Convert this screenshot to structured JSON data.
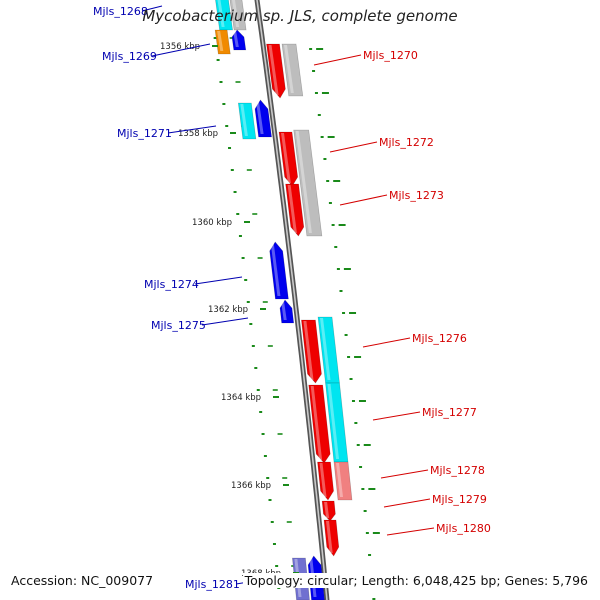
{
  "title": "Mycobacterium sp. JLS, complete genome",
  "footer": {
    "accession": "Accession: NC_009077",
    "summary": "Topology: circular; Length: 6,048,425 bp; Genes: 5,796"
  },
  "colors": {
    "forward_label": "#d40000",
    "reverse_label": "#0000b0",
    "backbone": "#7a7a7a",
    "tick": "#1a8a1a",
    "red": "#ee0000",
    "blue": "#0000ee",
    "cyan": "#00e5f0",
    "grey": "#bdbdbd",
    "orange": "#f08a00",
    "pink": "#f08080",
    "lavender": "#7070d0"
  },
  "kbp_labels": [
    "1356 kbp",
    "1358 kbp",
    "1360 kbp",
    "1362 kbp",
    "1364 kbp",
    "1366 kbp",
    "1368 kbp"
  ],
  "genes": [
    {
      "name": "Mjls_1268",
      "strand": "reverse"
    },
    {
      "name": "Mjls_1269",
      "strand": "reverse"
    },
    {
      "name": "Mjls_1270",
      "strand": "forward"
    },
    {
      "name": "Mjls_1271",
      "strand": "reverse"
    },
    {
      "name": "Mjls_1272",
      "strand": "forward"
    },
    {
      "name": "Mjls_1273",
      "strand": "forward"
    },
    {
      "name": "Mjls_1274",
      "strand": "reverse"
    },
    {
      "name": "Mjls_1275",
      "strand": "reverse"
    },
    {
      "name": "Mjls_1276",
      "strand": "forward"
    },
    {
      "name": "Mjls_1277",
      "strand": "forward"
    },
    {
      "name": "Mjls_1278",
      "strand": "forward"
    },
    {
      "name": "Mjls_1279",
      "strand": "forward"
    },
    {
      "name": "Mjls_1280",
      "strand": "forward"
    },
    {
      "name": "Mjls_1281",
      "strand": "reverse"
    }
  ]
}
